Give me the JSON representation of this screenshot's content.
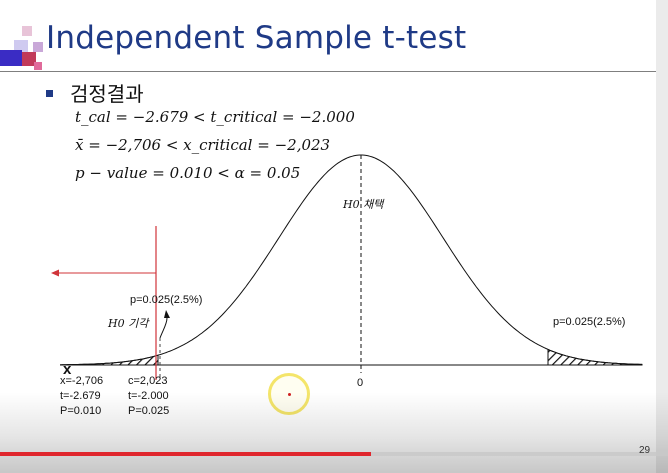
{
  "slide": {
    "title": "Independent Sample t-test",
    "bullet": "검정결과",
    "equations": {
      "line1": "t_cal = −2.679 < t_critical = −2.000",
      "line2": "x̄ = −2,706  < x_critical = −2,023",
      "line3": "p − value = 0.010 < α = 0.05"
    },
    "page_number": "29"
  },
  "chart_data": {
    "type": "diagram",
    "annotations": {
      "accept_h0": "H0 채택",
      "reject_h0": "H0 기각",
      "left_tail_p": "p=0.025(2.5%)",
      "right_tail_p": "p=0.025(2.5%)",
      "axis_zero": "0",
      "x_marker": "x"
    },
    "stats_left": [
      "x=-2,706",
      "t=-2.679",
      "P=0.010"
    ],
    "stats_right": [
      "c=2,023",
      "t=-2.000",
      "P=0.025"
    ]
  },
  "colors": {
    "title": "#1f3a86",
    "critical_line": "#d0343a",
    "progress": "#e0262d",
    "cursor": "#f4e56a"
  },
  "player": {
    "progress_fraction": 0.555
  }
}
